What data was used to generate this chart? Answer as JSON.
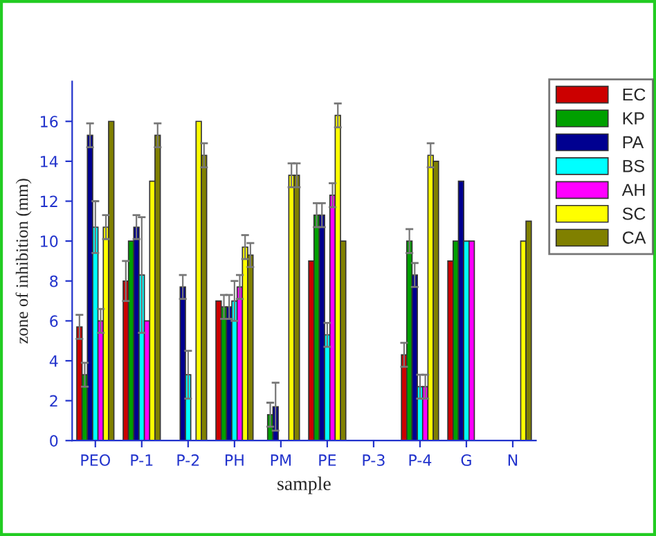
{
  "chart_data": {
    "type": "bar",
    "xlabel": "sample",
    "ylabel": "zone of inhibition (mm)",
    "categories": [
      "PEO",
      "P-1",
      "P-2",
      "PH",
      "PM",
      "PE",
      "P-3",
      "P-4",
      "G",
      "N"
    ],
    "ylim": [
      0,
      18
    ],
    "yticks": [
      0,
      2,
      4,
      6,
      8,
      10,
      12,
      14,
      16
    ],
    "grid": false,
    "legend": "top right",
    "series": [
      {
        "name": "EC",
        "color": "#cc0000",
        "values": [
          5.7,
          8.0,
          null,
          7.0,
          null,
          9.0,
          null,
          4.3,
          9.0,
          null
        ],
        "errors": [
          0.6,
          1.0,
          null,
          null,
          null,
          null,
          null,
          0.6,
          null,
          null
        ]
      },
      {
        "name": "KP",
        "color": "#00a000",
        "values": [
          3.3,
          10.0,
          null,
          6.7,
          1.3,
          11.3,
          null,
          10.0,
          10.0,
          null
        ],
        "errors": [
          0.6,
          null,
          null,
          0.6,
          0.6,
          0.6,
          null,
          0.6,
          null,
          null
        ]
      },
      {
        "name": "PA",
        "color": "#000090",
        "values": [
          15.3,
          10.7,
          7.7,
          6.7,
          1.7,
          11.3,
          null,
          8.3,
          13.0,
          null
        ],
        "errors": [
          0.6,
          0.6,
          0.6,
          0.6,
          1.2,
          0.6,
          null,
          0.6,
          null,
          null
        ]
      },
      {
        "name": "BS",
        "color": "#00ffff",
        "values": [
          10.7,
          8.3,
          3.3,
          7.0,
          null,
          5.3,
          null,
          2.7,
          10.0,
          null
        ],
        "errors": [
          1.3,
          2.9,
          1.2,
          1.0,
          null,
          0.6,
          null,
          0.6,
          null,
          null
        ]
      },
      {
        "name": "AH",
        "color": "#ff00ff",
        "values": [
          6.0,
          6.0,
          null,
          7.7,
          null,
          12.3,
          null,
          2.7,
          10.0,
          null
        ],
        "errors": [
          0.6,
          null,
          null,
          0.6,
          null,
          0.6,
          null,
          0.6,
          null,
          null
        ]
      },
      {
        "name": "SC",
        "color": "#ffff00",
        "values": [
          10.7,
          13.0,
          16.0,
          9.7,
          13.3,
          16.3,
          null,
          14.3,
          null,
          10.0
        ],
        "errors": [
          0.6,
          null,
          null,
          0.6,
          0.6,
          0.6,
          null,
          0.6,
          null,
          null
        ]
      },
      {
        "name": "CA",
        "color": "#808000",
        "values": [
          16.0,
          15.3,
          14.3,
          9.3,
          13.3,
          10.0,
          null,
          14.0,
          null,
          11.0
        ],
        "errors": [
          null,
          0.6,
          0.6,
          0.6,
          0.6,
          null,
          null,
          null,
          null,
          null
        ]
      }
    ]
  }
}
